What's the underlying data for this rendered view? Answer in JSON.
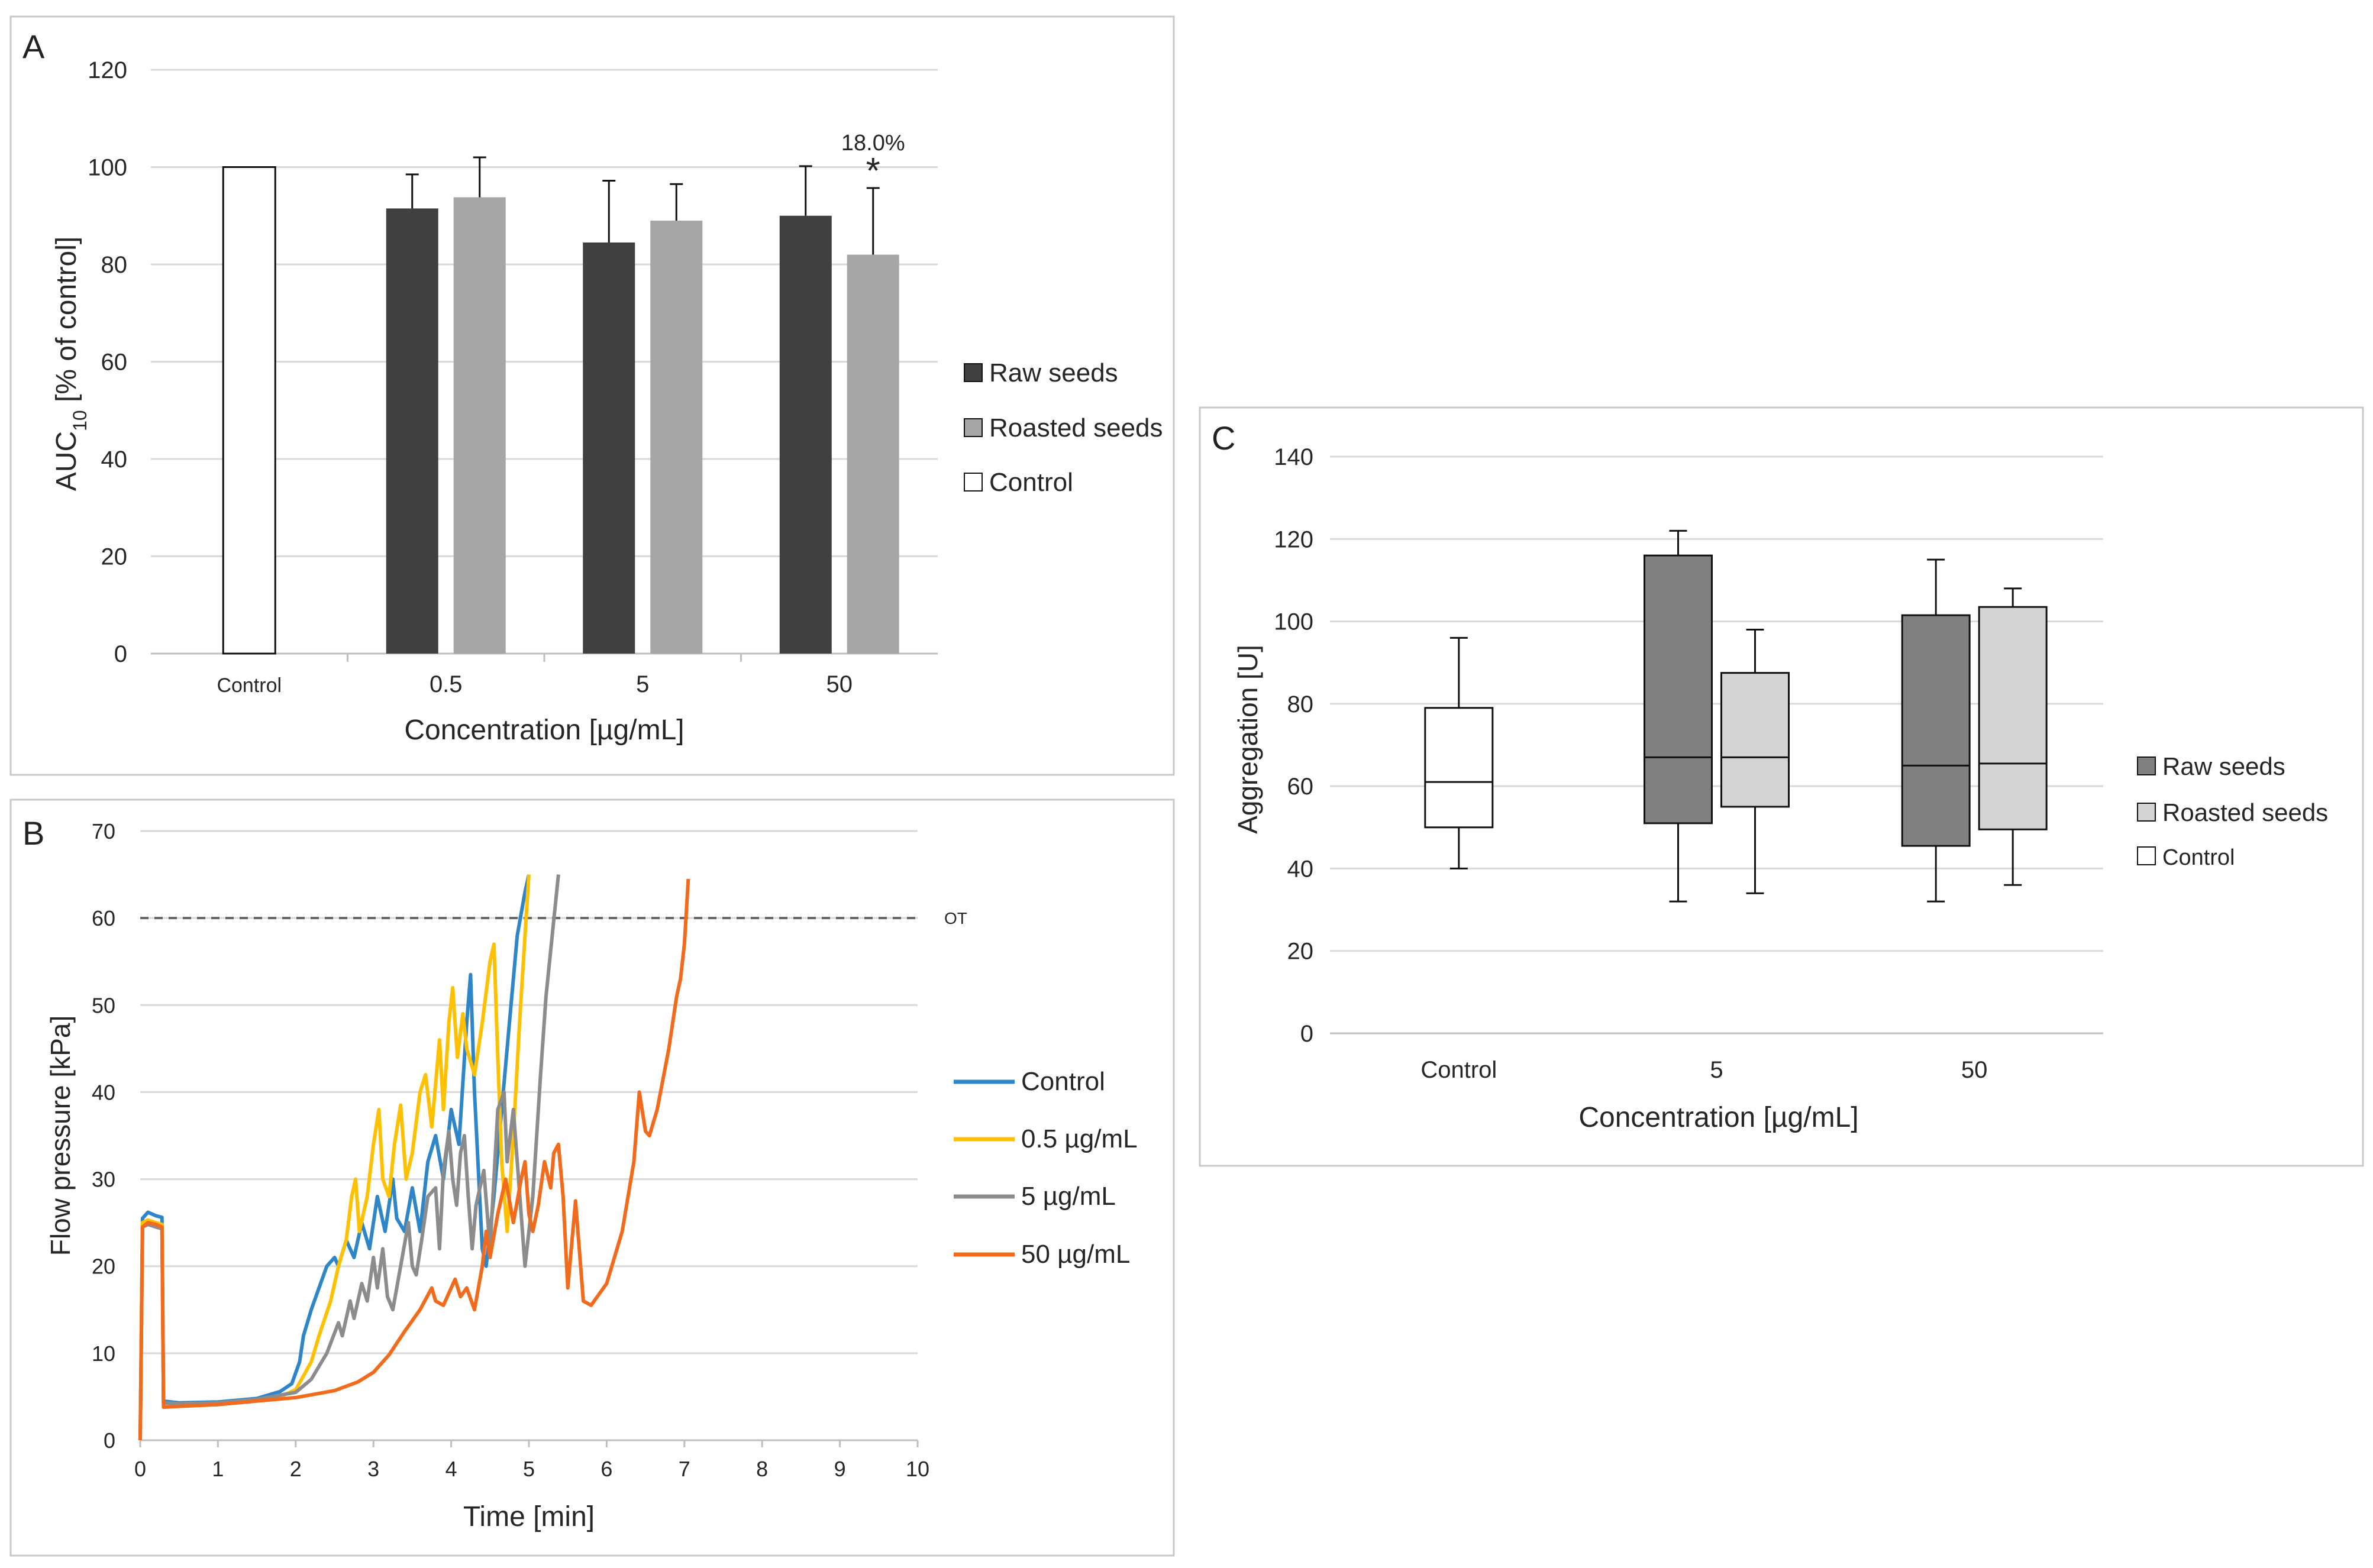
{
  "colors": {
    "raw": "#404040",
    "roasted": "#a6a6a6",
    "control_fill": "#ffffff",
    "raw_box": "#808080",
    "roasted_box": "#d4d4d4",
    "grid": "#d9d9d9",
    "frame": "#c8c8c8",
    "line_control": "#2e86c8",
    "line_05": "#ffc000",
    "line_5": "#8c8c8c",
    "line_50": "#f26a1b",
    "ot_line": "#666666"
  },
  "chart_data": [
    {
      "panel": "A",
      "type": "bar",
      "ylabel_main": "AUC",
      "ylabel_sub": "10",
      "ylabel_rest": " [% of control]",
      "xlabel": "Concentration [µg/mL]",
      "ylim": [
        0,
        120
      ],
      "ytick_step": 20,
      "categories": [
        "Control",
        "0.5",
        "5",
        "50"
      ],
      "series": [
        {
          "name": "Raw seeds",
          "values": [
            null,
            91.5,
            84.5,
            90
          ],
          "errors": [
            null,
            7,
            12.7,
            10.2
          ]
        },
        {
          "name": "Roasted seeds",
          "values": [
            null,
            93.8,
            89,
            82
          ],
          "errors": [
            null,
            8.2,
            7.5,
            13.7
          ]
        },
        {
          "name": "Control",
          "values": [
            100,
            null,
            null,
            null
          ],
          "errors": [
            null,
            null,
            null,
            null
          ]
        }
      ],
      "annotation": {
        "text": "18.0%",
        "star": "*",
        "category": "50",
        "series": "Roasted seeds"
      },
      "legend": [
        "Raw seeds",
        "Roasted seeds",
        "Control"
      ]
    },
    {
      "panel": "B",
      "type": "line",
      "ylabel": "Flow pressure [kPa]",
      "xlabel": "Time [min]",
      "xlim": [
        0,
        10
      ],
      "ylim": [
        0,
        70
      ],
      "x_step": 1,
      "y_step": 10,
      "ot_value": 60,
      "ot_label": "OT",
      "series": [
        {
          "name": "Control",
          "points": [
            [
              0,
              0
            ],
            [
              0.03,
              25.5
            ],
            [
              0.1,
              26.2
            ],
            [
              0.2,
              25.8
            ],
            [
              0.28,
              25.6
            ],
            [
              0.3,
              4.5
            ],
            [
              0.5,
              4.3
            ],
            [
              1,
              4.4
            ],
            [
              1.5,
              4.8
            ],
            [
              1.8,
              5.6
            ],
            [
              1.95,
              6.5
            ],
            [
              2.05,
              9
            ],
            [
              2.1,
              12
            ],
            [
              2.2,
              15
            ],
            [
              2.3,
              17.5
            ],
            [
              2.4,
              20
            ],
            [
              2.5,
              21
            ],
            [
              2.55,
              20
            ],
            [
              2.65,
              23
            ],
            [
              2.75,
              21
            ],
            [
              2.85,
              25
            ],
            [
              2.95,
              22
            ],
            [
              3.05,
              28
            ],
            [
              3.15,
              24
            ],
            [
              3.25,
              30
            ],
            [
              3.3,
              25.5
            ],
            [
              3.4,
              24
            ],
            [
              3.5,
              29
            ],
            [
              3.6,
              24
            ],
            [
              3.7,
              32
            ],
            [
              3.8,
              35
            ],
            [
              3.9,
              30
            ],
            [
              4,
              38
            ],
            [
              4.1,
              34
            ],
            [
              4.2,
              48
            ],
            [
              4.25,
              53.5
            ],
            [
              4.3,
              40
            ],
            [
              4.4,
              22
            ],
            [
              4.45,
              20
            ],
            [
              4.55,
              28
            ],
            [
              4.65,
              38
            ],
            [
              4.75,
              48
            ],
            [
              4.85,
              58
            ],
            [
              4.95,
              63
            ],
            [
              5,
              65
            ]
          ]
        },
        {
          "name": "0.5 µg/mL",
          "points": [
            [
              0,
              0
            ],
            [
              0.03,
              25
            ],
            [
              0.1,
              25.3
            ],
            [
              0.2,
              25
            ],
            [
              0.28,
              24.8
            ],
            [
              0.3,
              4.2
            ],
            [
              0.5,
              4.1
            ],
            [
              1,
              4.3
            ],
            [
              1.5,
              4.6
            ],
            [
              1.8,
              5
            ],
            [
              2,
              5.8
            ],
            [
              2.2,
              9
            ],
            [
              2.3,
              12
            ],
            [
              2.45,
              16
            ],
            [
              2.55,
              20
            ],
            [
              2.65,
              23
            ],
            [
              2.72,
              28
            ],
            [
              2.77,
              30
            ],
            [
              2.82,
              24
            ],
            [
              2.92,
              28
            ],
            [
              3,
              34
            ],
            [
              3.07,
              38
            ],
            [
              3.12,
              30
            ],
            [
              3.2,
              28
            ],
            [
              3.27,
              34
            ],
            [
              3.35,
              38.5
            ],
            [
              3.42,
              30
            ],
            [
              3.5,
              33
            ],
            [
              3.6,
              40
            ],
            [
              3.67,
              42
            ],
            [
              3.75,
              36
            ],
            [
              3.85,
              46
            ],
            [
              3.9,
              38
            ],
            [
              3.97,
              48
            ],
            [
              4.02,
              52
            ],
            [
              4.08,
              44
            ],
            [
              4.15,
              49
            ],
            [
              4.2,
              45
            ],
            [
              4.3,
              42
            ],
            [
              4.4,
              48
            ],
            [
              4.5,
              55
            ],
            [
              4.55,
              57
            ],
            [
              4.6,
              44
            ],
            [
              4.65,
              32
            ],
            [
              4.72,
              24
            ],
            [
              4.8,
              35
            ],
            [
              4.88,
              48
            ],
            [
              4.95,
              58
            ],
            [
              5,
              65
            ]
          ]
        },
        {
          "name": "5 µg/mL",
          "points": [
            [
              0,
              0
            ],
            [
              0.03,
              24.5
            ],
            [
              0.1,
              24.8
            ],
            [
              0.2,
              24.5
            ],
            [
              0.28,
              24.3
            ],
            [
              0.3,
              4.3
            ],
            [
              0.5,
              4.2
            ],
            [
              1,
              4.3
            ],
            [
              1.5,
              4.7
            ],
            [
              2,
              5.5
            ],
            [
              2.2,
              7
            ],
            [
              2.4,
              10
            ],
            [
              2.55,
              13.5
            ],
            [
              2.6,
              12
            ],
            [
              2.7,
              16
            ],
            [
              2.75,
              14
            ],
            [
              2.85,
              18
            ],
            [
              2.92,
              16
            ],
            [
              3,
              21
            ],
            [
              3.05,
              17.5
            ],
            [
              3.12,
              22
            ],
            [
              3.18,
              16.5
            ],
            [
              3.25,
              15
            ],
            [
              3.35,
              20
            ],
            [
              3.45,
              25
            ],
            [
              3.5,
              20
            ],
            [
              3.55,
              19
            ],
            [
              3.62,
              23
            ],
            [
              3.7,
              28
            ],
            [
              3.8,
              29
            ],
            [
              3.85,
              22
            ],
            [
              3.9,
              31
            ],
            [
              3.97,
              35.5
            ],
            [
              4.02,
              30
            ],
            [
              4.07,
              27
            ],
            [
              4.12,
              33
            ],
            [
              4.17,
              35
            ],
            [
              4.22,
              28
            ],
            [
              4.27,
              22
            ],
            [
              4.32,
              27
            ],
            [
              4.42,
              31
            ],
            [
              4.5,
              22
            ],
            [
              4.6,
              38
            ],
            [
              4.68,
              40
            ],
            [
              4.72,
              32
            ],
            [
              4.8,
              38
            ],
            [
              4.85,
              32
            ],
            [
              4.95,
              20
            ],
            [
              5.05,
              28
            ],
            [
              5.15,
              42
            ],
            [
              5.22,
              51
            ],
            [
              5.3,
              58
            ],
            [
              5.38,
              65
            ]
          ]
        },
        {
          "name": "50 µg/mL",
          "points": [
            [
              0,
              0
            ],
            [
              0.03,
              24.5
            ],
            [
              0.1,
              25
            ],
            [
              0.2,
              24.8
            ],
            [
              0.28,
              24.5
            ],
            [
              0.3,
              3.8
            ],
            [
              0.5,
              3.9
            ],
            [
              1,
              4.1
            ],
            [
              1.5,
              4.5
            ],
            [
              2,
              4.9
            ],
            [
              2.5,
              5.7
            ],
            [
              2.8,
              6.7
            ],
            [
              3,
              7.8
            ],
            [
              3.2,
              9.8
            ],
            [
              3.4,
              12.5
            ],
            [
              3.6,
              15
            ],
            [
              3.75,
              17.5
            ],
            [
              3.8,
              16
            ],
            [
              3.9,
              15.5
            ],
            [
              4.05,
              18.5
            ],
            [
              4.12,
              16.5
            ],
            [
              4.2,
              17.5
            ],
            [
              4.3,
              15
            ],
            [
              4.4,
              20
            ],
            [
              4.45,
              24
            ],
            [
              4.5,
              21
            ],
            [
              4.6,
              26
            ],
            [
              4.7,
              30
            ],
            [
              4.8,
              25
            ],
            [
              4.9,
              30
            ],
            [
              4.95,
              32
            ],
            [
              5,
              26
            ],
            [
              5.05,
              24
            ],
            [
              5.12,
              27
            ],
            [
              5.2,
              32
            ],
            [
              5.28,
              29
            ],
            [
              5.32,
              33
            ],
            [
              5.38,
              34
            ],
            [
              5.44,
              28
            ],
            [
              5.5,
              17.5
            ],
            [
              5.6,
              27.5
            ],
            [
              5.7,
              16
            ],
            [
              5.8,
              15.5
            ],
            [
              6,
              18
            ],
            [
              6.2,
              24
            ],
            [
              6.35,
              32
            ],
            [
              6.42,
              40
            ],
            [
              6.5,
              35.5
            ],
            [
              6.55,
              35
            ],
            [
              6.65,
              38
            ],
            [
              6.8,
              45
            ],
            [
              6.9,
              51
            ],
            [
              6.95,
              53
            ],
            [
              7,
              57
            ],
            [
              7.05,
              64.5
            ]
          ]
        }
      ],
      "legend": [
        "Control",
        "0.5 µg/mL",
        "5 µg/mL",
        "50 µg/mL"
      ]
    },
    {
      "panel": "C",
      "type": "box",
      "ylabel": "Aggregation [U]",
      "xlabel": "Concentration [µg/mL]",
      "ylim": [
        0,
        140
      ],
      "ytick_step": 20,
      "categories": [
        "Control",
        "5",
        "50"
      ],
      "boxes": [
        {
          "category": "Control",
          "series": "Control",
          "min": 40,
          "q1": 50,
          "median": 61,
          "q3": 79,
          "max": 96
        },
        {
          "category": "5",
          "series": "Raw seeds",
          "min": 32,
          "q1": 51,
          "median": 67,
          "q3": 116,
          "max": 122
        },
        {
          "category": "5",
          "series": "Roasted seeds",
          "min": 34,
          "q1": 55,
          "median": 67,
          "q3": 87.5,
          "max": 98
        },
        {
          "category": "50",
          "series": "Raw seeds",
          "min": 32,
          "q1": 45.5,
          "median": 65,
          "q3": 101.5,
          "max": 115
        },
        {
          "category": "50",
          "series": "Roasted seeds",
          "min": 36,
          "q1": 49.5,
          "median": 65.5,
          "q3": 103.5,
          "max": 108
        }
      ],
      "legend": [
        "Raw seeds",
        "Roasted seeds",
        "Control"
      ]
    }
  ]
}
